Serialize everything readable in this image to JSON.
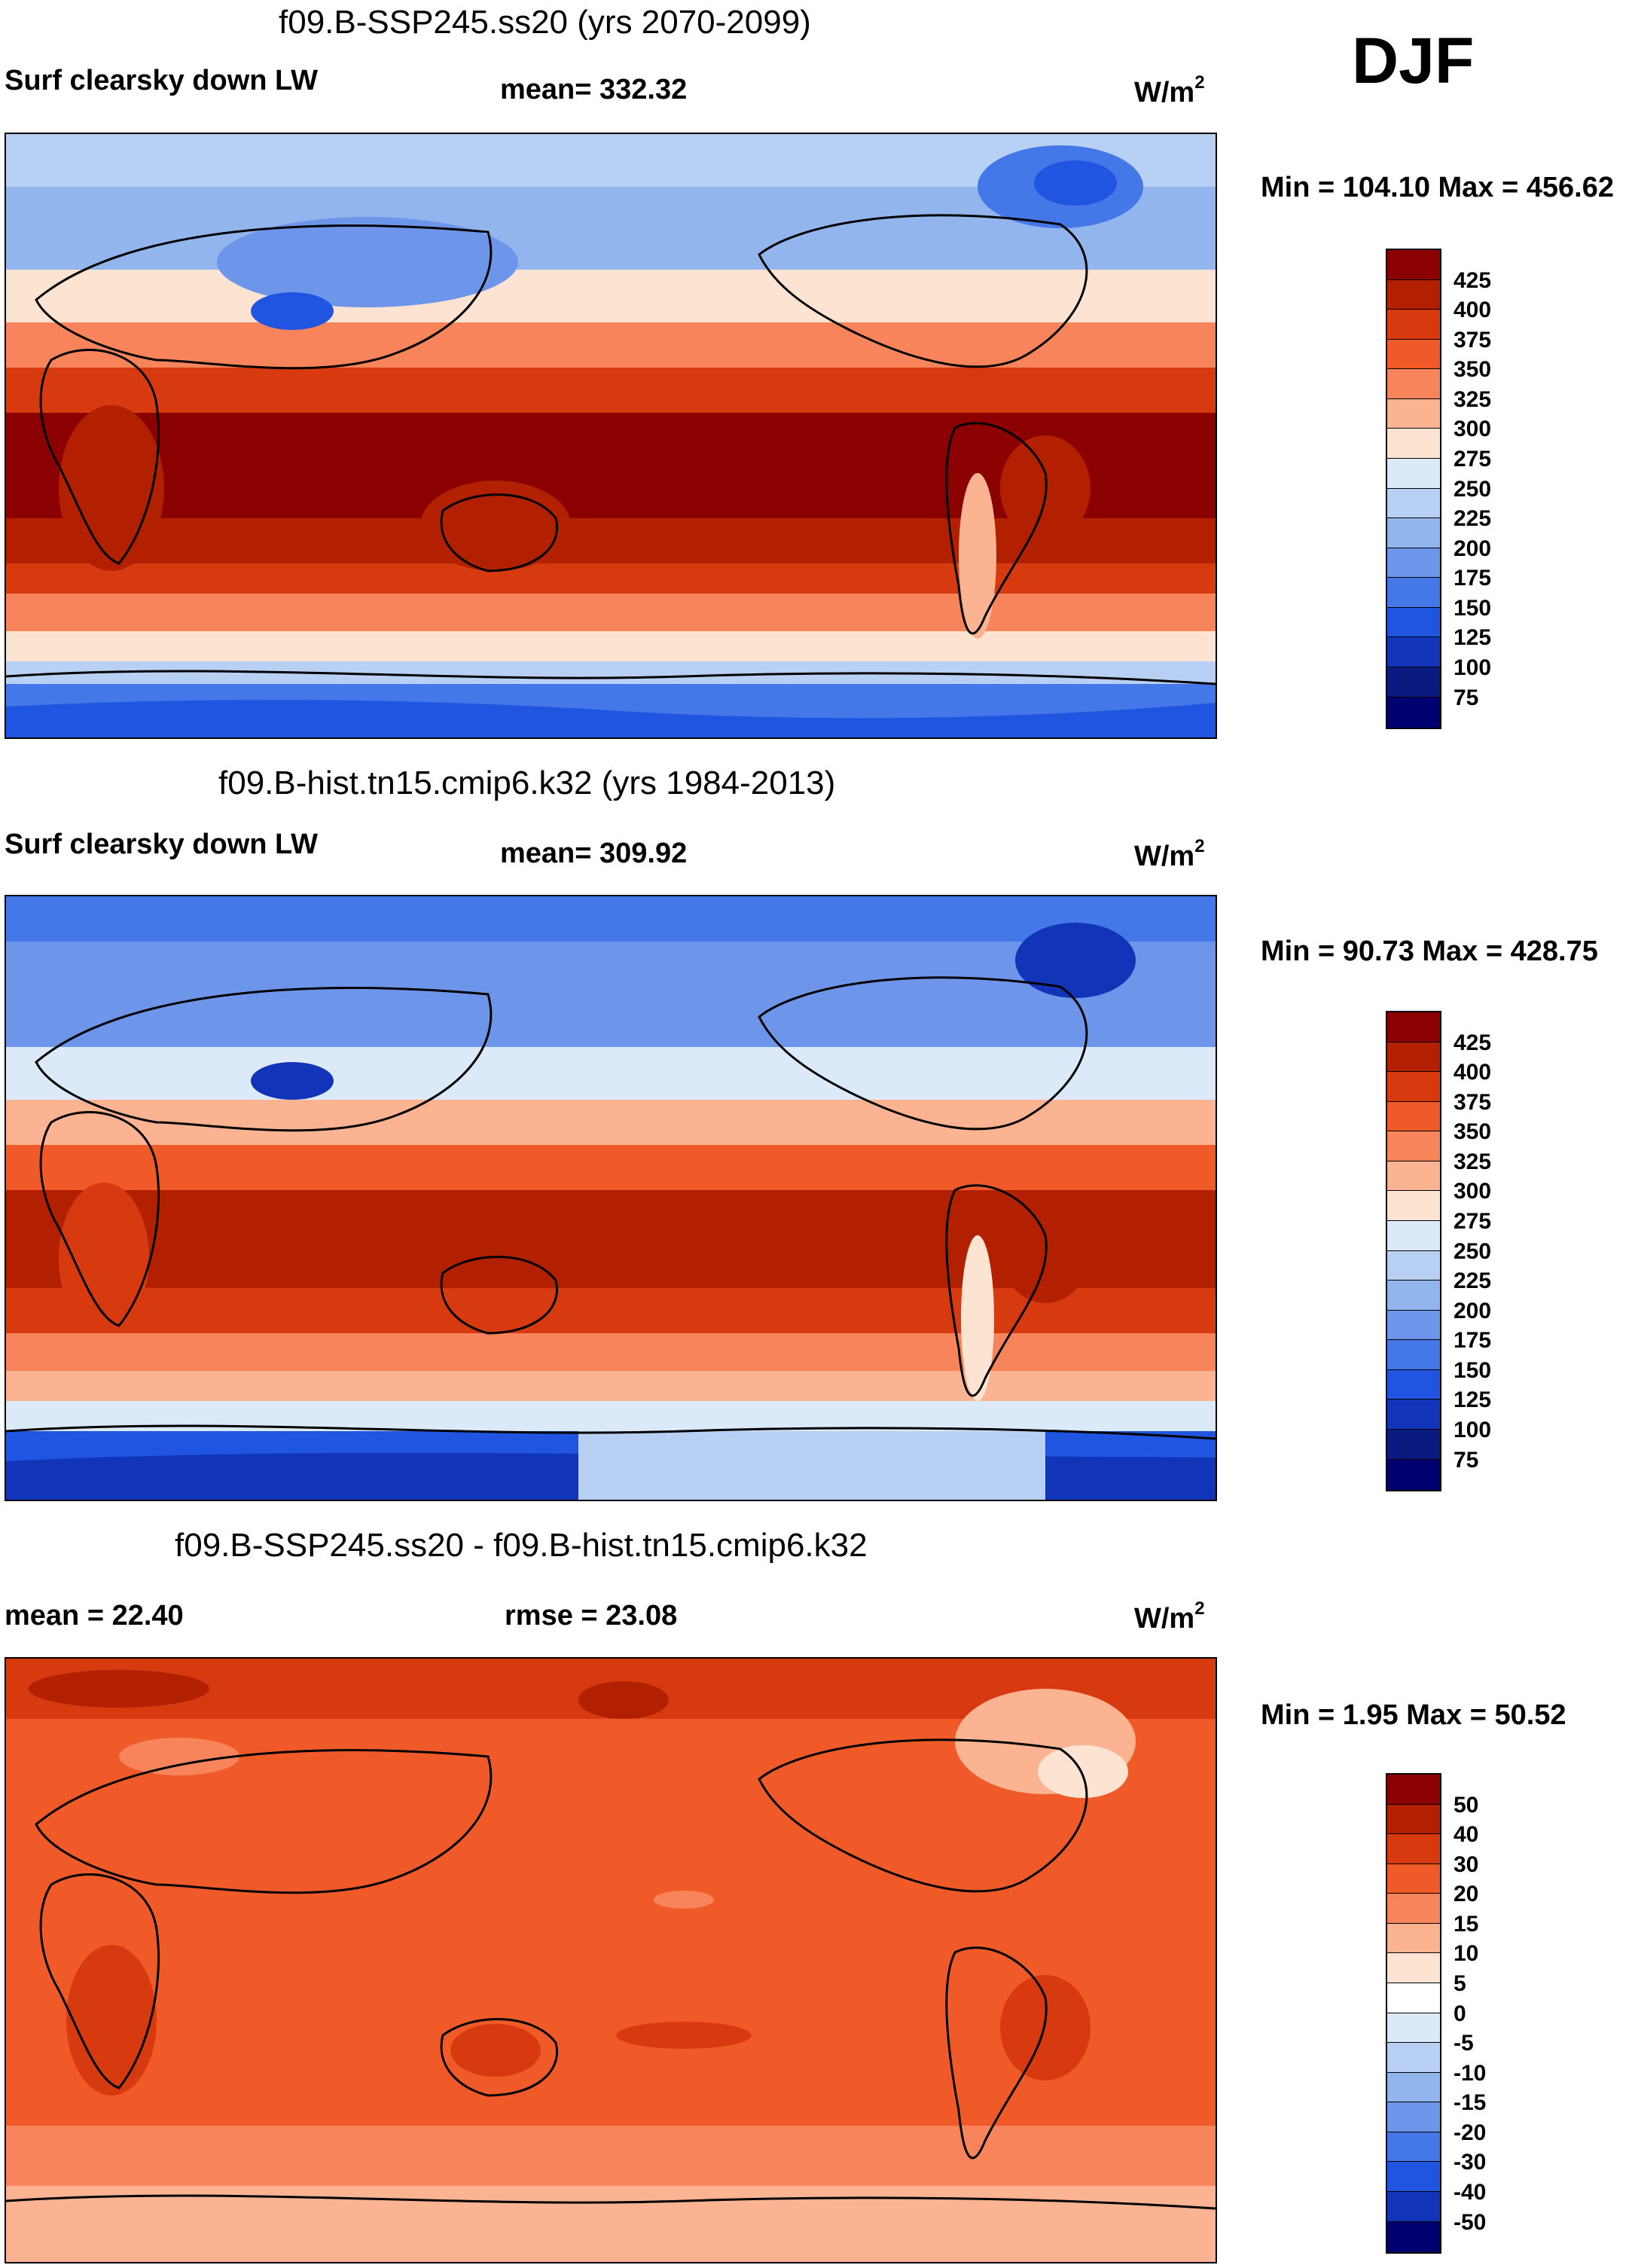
{
  "season": "DJF",
  "panels": [
    {
      "title": "f09.B-SSP245.ss20 (yrs 2070-2099)",
      "left_label": "Surf clearsky down LW",
      "center_label": "mean= 332.32",
      "units_base": "W/m",
      "units_exp": "2",
      "minmax": "Min = 104.10 Max = 456.62",
      "colorbar_labels": [
        "425",
        "400",
        "375",
        "350",
        "325",
        "300",
        "275",
        "250",
        "225",
        "200",
        "175",
        "150",
        "125",
        "100",
        "75"
      ]
    },
    {
      "title": "f09.B-hist.tn15.cmip6.k32 (yrs 1984-2013)",
      "left_label": "Surf clearsky down LW",
      "center_label": "mean= 309.92",
      "units_base": "W/m",
      "units_exp": "2",
      "minmax": "Min =  90.73 Max = 428.75",
      "colorbar_labels": [
        "425",
        "400",
        "375",
        "350",
        "325",
        "300",
        "275",
        "250",
        "225",
        "200",
        "175",
        "150",
        "125",
        "100",
        "75"
      ]
    },
    {
      "title": "f09.B-SSP245.ss20 - f09.B-hist.tn15.cmip6.k32",
      "left_label": "mean =  22.40",
      "center_label": "rmse =  23.08",
      "units_base": "W/m",
      "units_exp": "2",
      "minmax": "Min =   1.95 Max =  50.52",
      "colorbar_labels": [
        "50",
        "40",
        "30",
        "20",
        "15",
        "10",
        "5",
        "0",
        "-5",
        "-10",
        "-15",
        "-20",
        "-30",
        "-40",
        "-50"
      ]
    }
  ],
  "colors": {
    "abs_scale": [
      "#8b0000",
      "#b22000",
      "#d83a10",
      "#f05a28",
      "#f7845a",
      "#fbb392",
      "#fde3d2",
      "#dce9f8",
      "#b8d0f3",
      "#93b5ee",
      "#6d96ea",
      "#4478e8",
      "#1f55e0",
      "#1234b8",
      "#0a1a80",
      "#000070"
    ],
    "diff_scale": [
      "#8b0000",
      "#b22000",
      "#d83a10",
      "#f05a28",
      "#f7845a",
      "#fbb392",
      "#fde3d2",
      "#ffffff",
      "#dce9f8",
      "#b8d0f3",
      "#93b5ee",
      "#6d96ea",
      "#4478e8",
      "#1f55e0",
      "#1234b8",
      "#000070"
    ]
  }
}
